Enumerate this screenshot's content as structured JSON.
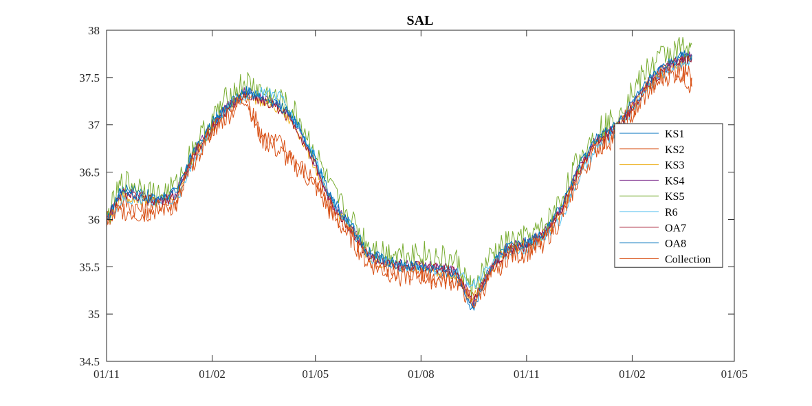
{
  "chart_data": {
    "type": "line",
    "title": "SAL",
    "xlabel": "",
    "ylabel": "",
    "ylim": [
      34.5,
      38
    ],
    "xlim": [
      "2019-11-01",
      "2021-05-01"
    ],
    "x_ticks": [
      "01/11",
      "01/02",
      "01/05",
      "01/08",
      "01/11",
      "01/02",
      "01/05"
    ],
    "y_ticks": [
      "34.5",
      "35",
      "35.5",
      "36",
      "36.5",
      "37",
      "37.5",
      "38"
    ],
    "grid": false,
    "legend_position": "right",
    "x": [
      "2019-11-01",
      "2019-11-15",
      "2019-12-01",
      "2019-12-15",
      "2020-01-01",
      "2020-01-15",
      "2020-02-01",
      "2020-02-15",
      "2020-03-01",
      "2020-03-15",
      "2020-04-01",
      "2020-04-15",
      "2020-05-01",
      "2020-05-15",
      "2020-06-01",
      "2020-06-15",
      "2020-07-01",
      "2020-07-15",
      "2020-08-01",
      "2020-08-15",
      "2020-09-01",
      "2020-09-15",
      "2020-10-01",
      "2020-10-15",
      "2020-11-01",
      "2020-11-15",
      "2020-12-01",
      "2020-12-15",
      "2021-01-01",
      "2021-01-15",
      "2021-02-01",
      "2021-02-15",
      "2021-03-01",
      "2021-03-15",
      "2021-03-25"
    ],
    "series": [
      {
        "name": "KS1",
        "color": "#0072BD",
        "values": [
          36.0,
          36.35,
          36.3,
          36.2,
          36.3,
          36.7,
          37.0,
          37.2,
          37.35,
          37.3,
          37.2,
          37.0,
          36.6,
          36.2,
          35.9,
          35.65,
          35.55,
          35.5,
          35.5,
          35.45,
          35.4,
          35.1,
          35.5,
          35.7,
          35.75,
          35.85,
          36.1,
          36.5,
          36.85,
          36.95,
          37.2,
          37.45,
          37.6,
          37.7,
          37.72
        ]
      },
      {
        "name": "KS2",
        "color": "#D95319",
        "values": [
          36.0,
          36.2,
          36.1,
          36.15,
          36.2,
          36.6,
          36.95,
          37.15,
          37.3,
          36.9,
          36.8,
          36.6,
          36.4,
          36.1,
          35.85,
          35.6,
          35.5,
          35.45,
          35.45,
          35.4,
          35.4,
          35.15,
          35.45,
          35.65,
          35.7,
          35.8,
          36.05,
          36.45,
          36.8,
          36.9,
          37.15,
          37.4,
          37.55,
          37.6,
          37.5
        ]
      },
      {
        "name": "KS3",
        "color": "#EDB120",
        "values": [
          36.0,
          36.25,
          36.2,
          36.2,
          36.25,
          36.65,
          36.98,
          37.18,
          37.32,
          37.25,
          37.15,
          36.95,
          36.55,
          36.15,
          35.9,
          35.62,
          35.52,
          35.5,
          35.5,
          35.45,
          35.42,
          35.15,
          35.48,
          35.68,
          35.72,
          35.82,
          36.08,
          36.48,
          36.82,
          36.92,
          37.18,
          37.42,
          37.58,
          37.65,
          37.7
        ]
      },
      {
        "name": "KS4",
        "color": "#7E2F8E",
        "values": [
          36.0,
          36.3,
          36.25,
          36.2,
          36.28,
          36.68,
          37.0,
          37.2,
          37.35,
          37.28,
          37.18,
          36.98,
          36.58,
          36.18,
          35.92,
          35.65,
          35.55,
          35.52,
          35.52,
          35.5,
          35.45,
          35.12,
          35.5,
          35.7,
          35.75,
          35.85,
          36.1,
          36.5,
          36.85,
          36.95,
          37.2,
          37.45,
          37.6,
          37.7,
          37.72
        ]
      },
      {
        "name": "KS5",
        "color": "#77AC30",
        "values": [
          36.0,
          36.4,
          36.35,
          36.25,
          36.35,
          36.75,
          37.05,
          37.3,
          37.45,
          37.35,
          37.25,
          37.1,
          36.7,
          36.3,
          36.0,
          35.75,
          35.65,
          35.65,
          35.65,
          35.6,
          35.55,
          35.25,
          35.6,
          35.75,
          35.8,
          35.9,
          36.2,
          36.6,
          36.95,
          37.05,
          37.35,
          37.6,
          37.75,
          37.8,
          37.85
        ]
      },
      {
        "name": "R6",
        "color": "#4DBEEE",
        "values": [
          36.0,
          36.2,
          36.2,
          36.2,
          36.2,
          36.6,
          36.95,
          37.2,
          37.3,
          37.35,
          37.3,
          37.0,
          36.65,
          36.2,
          35.95,
          35.6,
          35.55,
          35.5,
          35.5,
          35.45,
          35.45,
          35.3,
          35.5,
          35.65,
          35.7,
          35.8,
          36.0,
          36.4,
          36.75,
          36.9,
          37.15,
          37.4,
          37.55,
          37.65,
          37.7
        ]
      },
      {
        "name": "OA7",
        "color": "#A2142F",
        "values": [
          36.0,
          36.28,
          36.22,
          36.18,
          36.25,
          36.65,
          36.98,
          37.18,
          37.32,
          37.26,
          37.16,
          36.96,
          36.56,
          36.16,
          35.9,
          35.62,
          35.52,
          35.5,
          35.5,
          35.48,
          35.44,
          35.12,
          35.48,
          35.68,
          35.72,
          35.82,
          36.08,
          36.48,
          36.82,
          36.92,
          37.18,
          37.42,
          37.58,
          37.68,
          37.7
        ]
      },
      {
        "name": "OA8",
        "color": "#0072BD",
        "values": [
          36.0,
          36.32,
          36.26,
          36.2,
          36.3,
          36.7,
          37.02,
          37.22,
          37.36,
          37.28,
          37.2,
          37.02,
          36.62,
          36.22,
          35.94,
          35.66,
          35.56,
          35.52,
          35.5,
          35.46,
          35.42,
          35.05,
          35.5,
          35.72,
          35.76,
          35.86,
          36.12,
          36.52,
          36.86,
          36.96,
          37.22,
          37.46,
          37.62,
          37.72,
          37.74
        ]
      },
      {
        "name": "Collection",
        "color": "#D95319",
        "values": [
          36.0,
          36.1,
          36.05,
          36.1,
          36.15,
          36.6,
          36.95,
          37.1,
          37.3,
          36.85,
          36.7,
          36.55,
          36.35,
          36.05,
          35.8,
          35.55,
          35.45,
          35.4,
          35.4,
          35.35,
          35.35,
          35.1,
          35.4,
          35.6,
          35.65,
          35.75,
          36.0,
          36.4,
          36.75,
          36.85,
          37.1,
          37.35,
          37.5,
          37.55,
          37.4
        ]
      }
    ]
  }
}
